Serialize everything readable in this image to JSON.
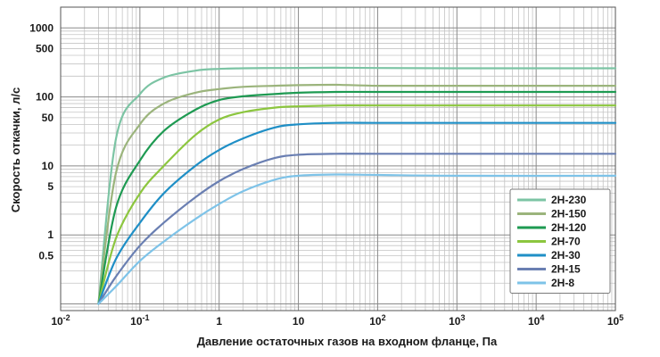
{
  "chart_data": {
    "type": "line",
    "xlabel": "Давление остаточных газов на входном фланце, Па",
    "ylabel": "Скорость откачки, л/с",
    "xscale": "log",
    "yscale": "log",
    "xlim": [
      0.01,
      100000
    ],
    "ylim": [
      0.08,
      2000
    ],
    "grid": true,
    "legend_position": "bottom-right",
    "x_ticks": [
      {
        "value": 0.01,
        "base": "10",
        "exp": "-2"
      },
      {
        "value": 0.1,
        "base": "10",
        "exp": "-1"
      },
      {
        "value": 1,
        "base": "1",
        "exp": ""
      },
      {
        "value": 10,
        "base": "10",
        "exp": ""
      },
      {
        "value": 100,
        "base": "10",
        "exp": "2"
      },
      {
        "value": 1000,
        "base": "10",
        "exp": "3"
      },
      {
        "value": 10000,
        "base": "10",
        "exp": "4"
      },
      {
        "value": 100000,
        "base": "10",
        "exp": "5"
      }
    ],
    "y_ticks": [
      {
        "value": 0.5,
        "label": "0.5"
      },
      {
        "value": 1,
        "label": "1"
      },
      {
        "value": 5,
        "label": "5"
      },
      {
        "value": 10,
        "label": "10"
      },
      {
        "value": 50,
        "label": "50"
      },
      {
        "value": 100,
        "label": "100"
      },
      {
        "value": 500,
        "label": "500"
      },
      {
        "value": 1000,
        "label": "1000"
      }
    ],
    "series": [
      {
        "name": "2H-230",
        "color": "#7cc4a4",
        "x": [
          0.03,
          0.05,
          0.1,
          0.2,
          0.5,
          1,
          2,
          5,
          10,
          30,
          100,
          1000,
          100000
        ],
        "y": [
          0.1,
          25,
          110,
          190,
          240,
          255,
          260,
          262,
          263,
          265,
          262,
          260,
          260
        ]
      },
      {
        "name": "2H-150",
        "color": "#9bb47c",
        "x": [
          0.03,
          0.05,
          0.1,
          0.2,
          0.5,
          1,
          2,
          5,
          10,
          30,
          100,
          1000,
          100000
        ],
        "y": [
          0.1,
          8,
          40,
          80,
          115,
          130,
          140,
          145,
          148,
          150,
          145,
          145,
          145
        ]
      },
      {
        "name": "2H-120",
        "color": "#1e9a52",
        "x": [
          0.03,
          0.05,
          0.1,
          0.2,
          0.5,
          1,
          2,
          5,
          10,
          30,
          100,
          1000,
          100000
        ],
        "y": [
          0.1,
          2.5,
          12,
          32,
          65,
          90,
          102,
          110,
          115,
          118,
          118,
          118,
          118
        ]
      },
      {
        "name": "2H-70",
        "color": "#8cc63f",
        "x": [
          0.03,
          0.05,
          0.1,
          0.2,
          0.5,
          1,
          2,
          5,
          10,
          30,
          100,
          1000,
          100000
        ],
        "y": [
          0.1,
          0.9,
          4,
          10,
          28,
          47,
          60,
          70,
          73,
          75,
          75,
          75,
          75
        ]
      },
      {
        "name": "2H-30",
        "color": "#1f8fc6",
        "x": [
          0.03,
          0.05,
          0.1,
          0.2,
          0.5,
          1,
          2,
          5,
          10,
          30,
          100,
          1000,
          100000
        ],
        "y": [
          0.1,
          0.45,
          1.5,
          4,
          10,
          17,
          25,
          36,
          40,
          42,
          42,
          42,
          42
        ]
      },
      {
        "name": "2H-15",
        "color": "#6a7fb2",
        "x": [
          0.03,
          0.05,
          0.1,
          0.2,
          0.5,
          1,
          2,
          5,
          10,
          30,
          100,
          1000,
          100000
        ],
        "y": [
          0.1,
          0.25,
          0.7,
          1.5,
          3.5,
          6,
          9,
          13,
          14.5,
          15,
          15,
          15,
          15
        ]
      },
      {
        "name": "2H-8",
        "color": "#7ec3e8",
        "x": [
          0.03,
          0.05,
          0.1,
          0.2,
          0.5,
          1,
          2,
          5,
          10,
          30,
          100,
          1000,
          100000
        ],
        "y": [
          0.1,
          0.18,
          0.42,
          0.8,
          1.7,
          2.8,
          4.3,
          6.3,
          7.2,
          7.5,
          7.4,
          7.2,
          7.2
        ]
      }
    ]
  }
}
